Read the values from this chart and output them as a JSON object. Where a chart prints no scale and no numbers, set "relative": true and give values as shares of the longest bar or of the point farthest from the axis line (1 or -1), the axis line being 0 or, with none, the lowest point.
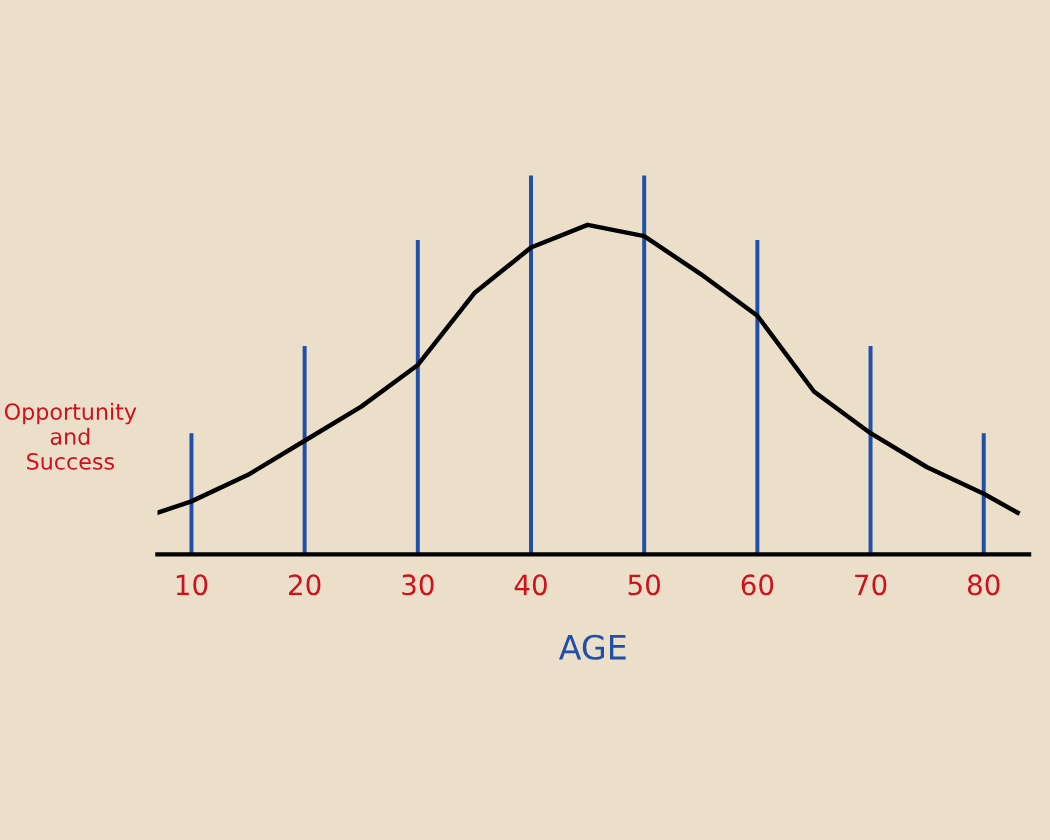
{
  "chart_data": {
    "type": "line",
    "relative": true,
    "xlabel": "AGE",
    "ylabel": "Opportunity\nand\nSuccess",
    "xlim": [
      7,
      84
    ],
    "xticks": [
      10,
      20,
      30,
      40,
      50,
      60,
      70,
      80
    ],
    "tick_labels": "x",
    "grid": false,
    "legend": false,
    "series": [
      {
        "color": "#000000",
        "x": [
          7,
          10,
          15,
          20,
          25,
          30,
          35,
          40,
          45,
          50,
          55,
          60,
          65,
          70,
          75,
          80,
          83
        ],
        "values": [
          0.11,
          0.14,
          0.21,
          0.3,
          0.39,
          0.5,
          0.69,
          0.81,
          0.87,
          0.84,
          0.74,
          0.63,
          0.43,
          0.32,
          0.23,
          0.16,
          0.11
        ]
      },
      {
        "type": "bar",
        "color": "#1f4fa8",
        "x": [
          10,
          20,
          30,
          40,
          50,
          60,
          70,
          80
        ],
        "values": [
          0.32,
          0.55,
          0.83,
          1,
          1,
          0.83,
          0.55,
          0.32
        ]
      }
    ]
  }
}
